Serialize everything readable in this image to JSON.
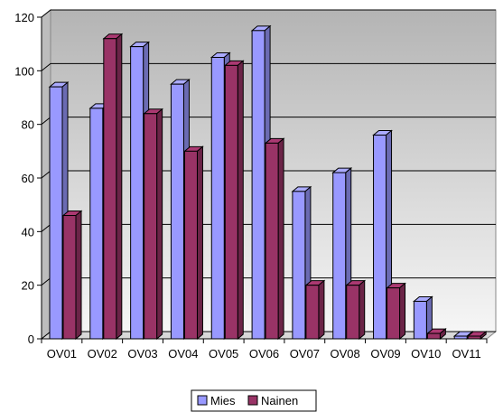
{
  "chart_data": {
    "type": "bar",
    "title": "",
    "xlabel": "",
    "ylabel": "",
    "categories": [
      "OV01",
      "OV02",
      "OV03",
      "OV04",
      "OV05",
      "OV06",
      "OV07",
      "OV08",
      "OV09",
      "OV10",
      "OV11"
    ],
    "series": [
      {
        "name": "Mies",
        "color": "#9999ff",
        "values": [
          94,
          86,
          109,
          95,
          105,
          115,
          55,
          62,
          76,
          14,
          1
        ]
      },
      {
        "name": "Nainen",
        "color": "#993366",
        "values": [
          46,
          112,
          84,
          70,
          102,
          73,
          20,
          20,
          19,
          2,
          1
        ]
      }
    ],
    "ylim": [
      0,
      120
    ],
    "yticks": [
      0,
      20,
      40,
      60,
      80,
      100,
      120
    ],
    "grid": true,
    "legend_position": "bottom",
    "three_d": true
  }
}
